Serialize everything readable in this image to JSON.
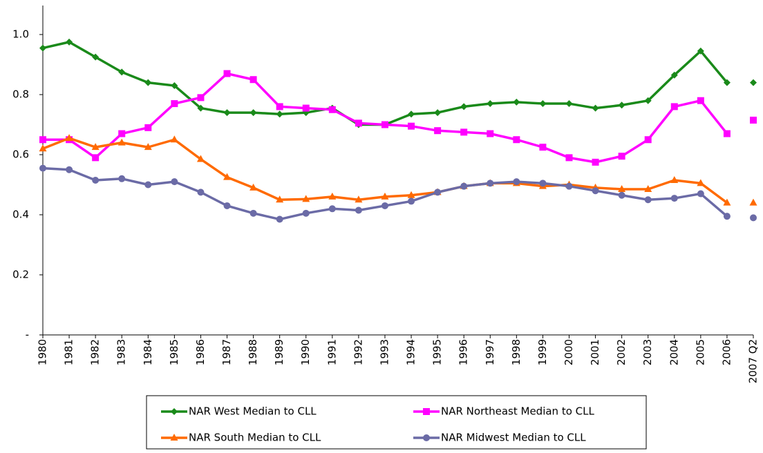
{
  "chart_data": {
    "type": "line",
    "categories": [
      "1980",
      "1981",
      "1982",
      "1983",
      "1984",
      "1985",
      "1986",
      "1987",
      "1988",
      "1989",
      "1990",
      "1991",
      "1992",
      "1993",
      "1994",
      "1995",
      "1996",
      "1997",
      "1998",
      "1999",
      "2000",
      "2001",
      "2002",
      "2003",
      "2004",
      "2005",
      "2006",
      "2007 Q2"
    ],
    "series": [
      {
        "name": "NAR West Median to CLL",
        "color": "#1a8a1a",
        "marker": "diamond",
        "values": [
          0.955,
          0.975,
          0.925,
          0.875,
          0.84,
          0.83,
          0.755,
          0.74,
          0.74,
          0.735,
          0.74,
          0.755,
          0.7,
          0.7,
          0.735,
          0.74,
          0.76,
          0.77,
          0.775,
          0.77,
          0.77,
          0.755,
          0.765,
          0.78,
          0.865,
          0.945,
          0.84,
          0.84
        ]
      },
      {
        "name": "NAR Northeast Median to CLL",
        "color": "#ff00ff",
        "marker": "square",
        "values": [
          0.65,
          0.65,
          0.59,
          0.67,
          0.69,
          0.77,
          0.79,
          0.87,
          0.85,
          0.76,
          0.755,
          0.75,
          0.705,
          0.7,
          0.695,
          0.68,
          0.675,
          0.67,
          0.65,
          0.625,
          0.59,
          0.575,
          0.595,
          0.65,
          0.76,
          0.78,
          0.67,
          0.715
        ]
      },
      {
        "name": "NAR South Median to CLL",
        "color": "#ff6a00",
        "marker": "triangle",
        "values": [
          0.62,
          0.655,
          0.625,
          0.64,
          0.625,
          0.65,
          0.585,
          0.525,
          0.49,
          0.45,
          0.452,
          0.46,
          0.45,
          0.46,
          0.465,
          0.475,
          0.495,
          0.505,
          0.505,
          0.495,
          0.5,
          0.49,
          0.485,
          0.485,
          0.515,
          0.505,
          0.44,
          0.44
        ]
      },
      {
        "name": "NAR Midwest Median to CLL",
        "color": "#6b6ba6",
        "marker": "circle",
        "values": [
          0.555,
          0.55,
          0.515,
          0.52,
          0.5,
          0.51,
          0.475,
          0.43,
          0.405,
          0.385,
          0.405,
          0.42,
          0.415,
          0.43,
          0.445,
          0.475,
          0.495,
          0.505,
          0.51,
          0.505,
          0.495,
          0.48,
          0.465,
          0.45,
          0.455,
          0.47,
          0.395,
          0.39
        ]
      }
    ],
    "ylim": [
      0,
      1.1
    ],
    "yticks": [
      {
        "value": 0,
        "label": "-"
      },
      0.2,
      0.4,
      0.6,
      0.8,
      {
        "value": 1,
        "label": "1.0"
      }
    ],
    "grid": false,
    "last_point_connected": false,
    "legend": "bottom"
  }
}
